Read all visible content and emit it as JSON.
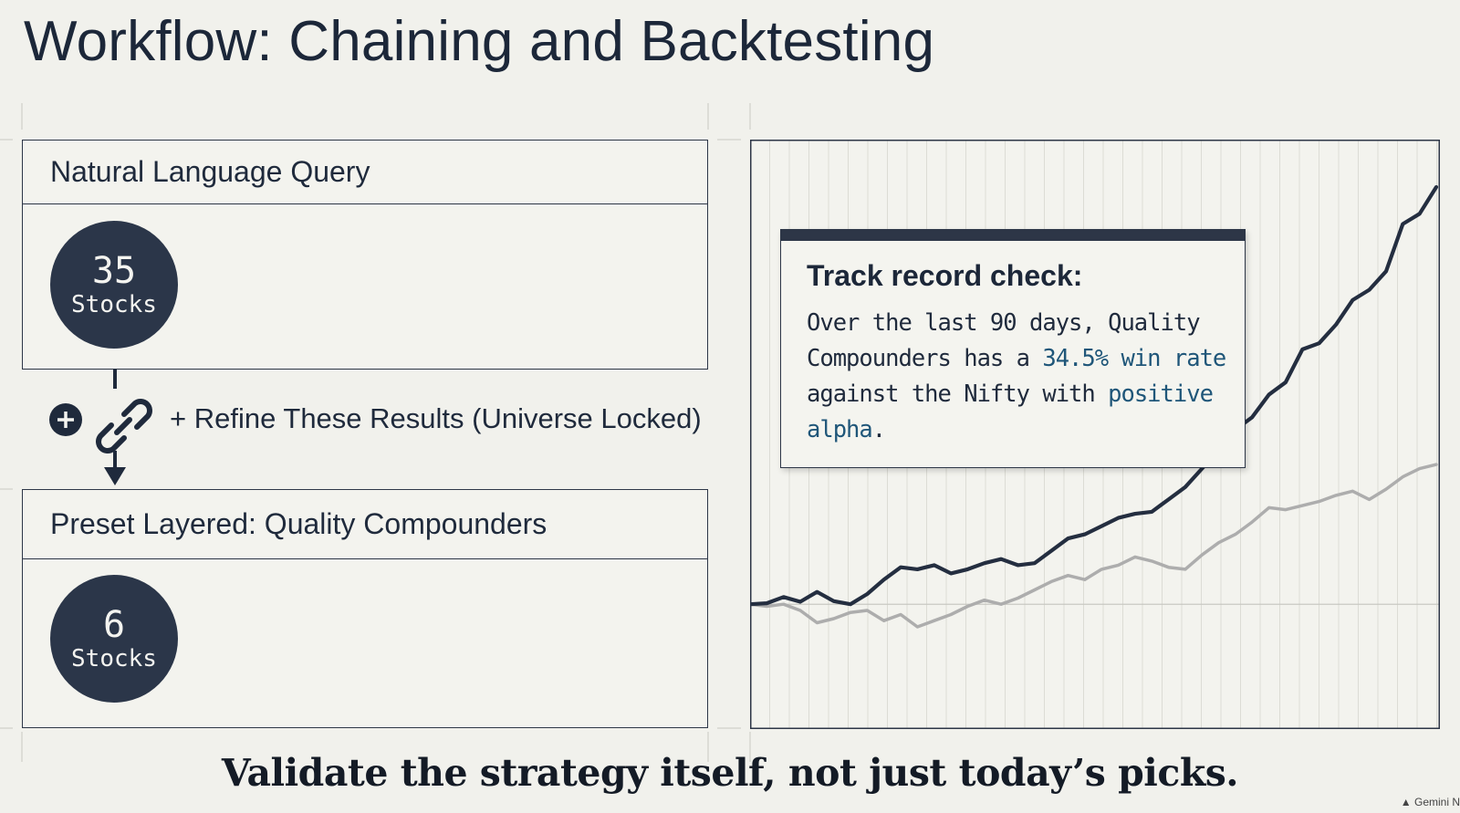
{
  "slide": {
    "title": "Workflow: Chaining and Backtesting",
    "tagline": "Validate the strategy itself, not just today’s picks."
  },
  "query_panel": {
    "header": "Natural Language Query",
    "count": "35",
    "unit": "Stocks"
  },
  "refine": {
    "label": "+ Refine These Results (Universe Locked)",
    "icons": [
      "plus-circle-icon",
      "link-chain-icon",
      "arrow-down-icon"
    ]
  },
  "preset_panel": {
    "header": "Preset Layered: Quality Compounders",
    "count": "6",
    "unit": "Stocks"
  },
  "callout": {
    "title": "Track record check:",
    "text_1": "Over the last 90 days, Quality Compounders has a ",
    "highlight_1": "34.5% win rate",
    "text_2": " against the Nifty with ",
    "highlight_2": "positive alpha",
    "text_3": "."
  },
  "chart_data": {
    "type": "line",
    "grid": true,
    "legend": "none",
    "series": [
      {
        "color": "#242e40",
        "values": [
          0,
          0.5,
          3.5,
          1.2,
          6,
          1.5,
          0,
          5,
          12,
          18,
          17,
          19,
          15,
          17,
          20,
          22,
          19,
          20,
          26,
          32,
          34,
          38,
          42,
          44,
          45,
          51,
          57,
          66,
          75,
          85,
          91,
          102,
          108,
          124,
          127,
          136,
          148,
          153,
          162,
          185,
          190,
          203
        ]
      },
      {
        "color": "#adadad",
        "values": [
          0,
          -1,
          0,
          -3,
          -9,
          -7,
          -4,
          -3,
          -8,
          -5,
          -11,
          -8,
          -5,
          -1,
          2,
          0,
          3,
          7,
          11,
          14,
          12,
          17,
          19,
          23,
          21,
          18,
          17,
          24,
          30,
          34,
          40,
          47,
          46,
          48,
          50,
          53,
          55,
          51,
          56,
          62,
          66,
          68
        ]
      }
    ]
  },
  "watermark": "Gemini N"
}
